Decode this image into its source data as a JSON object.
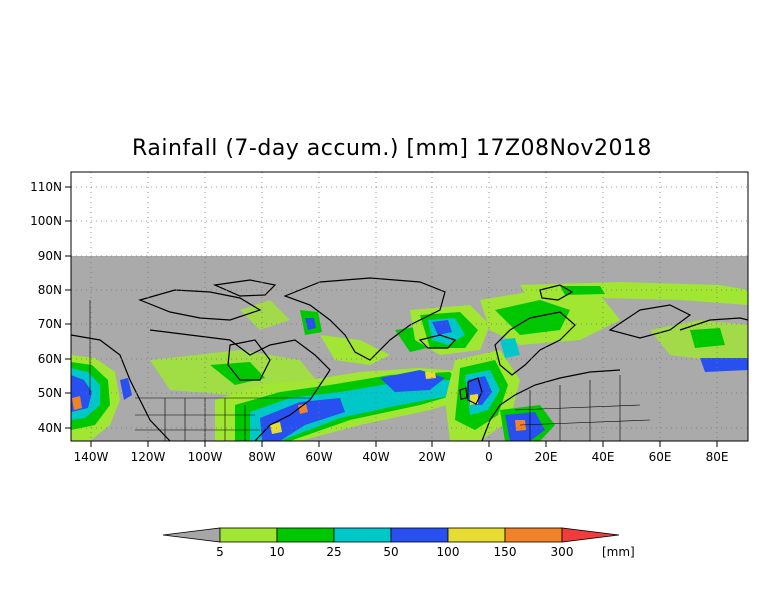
{
  "title": "Rainfall (7-day accum.) [mm] 17Z08Nov2018",
  "axes": {
    "lat_labels": [
      "110N",
      "100N",
      "90N",
      "80N",
      "70N",
      "60N",
      "50N",
      "40N"
    ],
    "lon_labels": [
      "140W",
      "120W",
      "100W",
      "80W",
      "60W",
      "40W",
      "20W",
      "0",
      "20E",
      "40E",
      "60E",
      "80E"
    ]
  },
  "colorbar": {
    "labels": [
      "5",
      "10",
      "25",
      "50",
      "100",
      "150",
      "300"
    ],
    "unit": "[mm]",
    "colors": [
      "#a6a6a6",
      "#a0e632",
      "#00c800",
      "#00c8c8",
      "#2850f0",
      "#e6dc32",
      "#f08228",
      "#f03c3c"
    ]
  },
  "map": {
    "no_data_color": "#aaaaaa",
    "grid_style": "dotted",
    "lat_range": [
      36,
      113
    ],
    "lon_range": [
      -147,
      92
    ]
  }
}
